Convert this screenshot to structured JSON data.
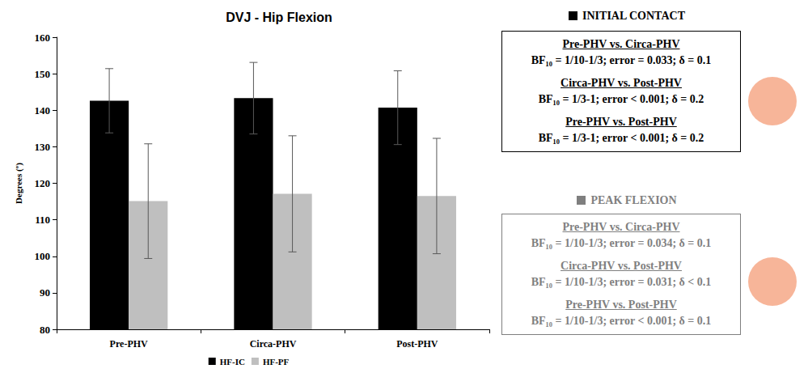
{
  "chart_data": {
    "type": "bar",
    "title": "DVJ - Hip Flexion",
    "y_label": "Degrees (º)",
    "categories": [
      "Pre-PHV",
      "Circa-PHV",
      "Post-PHV"
    ],
    "series": [
      {
        "name": "HF-IC",
        "color": "#000000",
        "values": [
          142.6,
          143.3,
          140.7
        ],
        "errors": [
          8.8,
          9.8,
          10.1
        ]
      },
      {
        "name": "HF-PF",
        "color": "#bfbfbf",
        "values": [
          115.1,
          117.1,
          116.5
        ],
        "errors": [
          15.7,
          15.9,
          15.8
        ]
      }
    ],
    "ylim": [
      80,
      160
    ],
    "yticks": [
      80,
      90,
      100,
      110,
      120,
      130,
      140,
      150,
      160
    ],
    "grid": false,
    "legend": "bottom",
    "annotations": [
      {
        "heading": "INITIAL CONTACT",
        "color": "#000000",
        "comparisons": [
          {
            "title": "Pre-PHV vs. Circa-PHV",
            "text": "BF₁₀ = 1/10-1/3; error = 0.033; δ = 0.1"
          },
          {
            "title": "Circa-PHV vs. Post-PHV",
            "text": "BF₁₀ = 1/3-1; error < 0.001; δ = 0.2"
          },
          {
            "title": "Pre-PHV vs. Post-PHV",
            "text": "BF₁₀ = 1/3-1; error < 0.001; δ = 0.2"
          }
        ]
      },
      {
        "heading": "PEAK FLEXION",
        "color": "#7f7f7f",
        "comparisons": [
          {
            "title": "Pre-PHV vs. Circa-PHV",
            "text": "BF₁₀ = 1/10-1/3; error = 0.034; δ = 0.1"
          },
          {
            "title": "Circa-PHV vs. Post-PHV",
            "text": "BF₁₀ = 1/10-1/3; error = 0.031; δ < 0.1"
          },
          {
            "title": "Pre-PHV vs. Post-PHV",
            "text": "BF₁₀ = 1/10-1/3; error < 0.001; δ = 0.1"
          }
        ]
      }
    ]
  }
}
